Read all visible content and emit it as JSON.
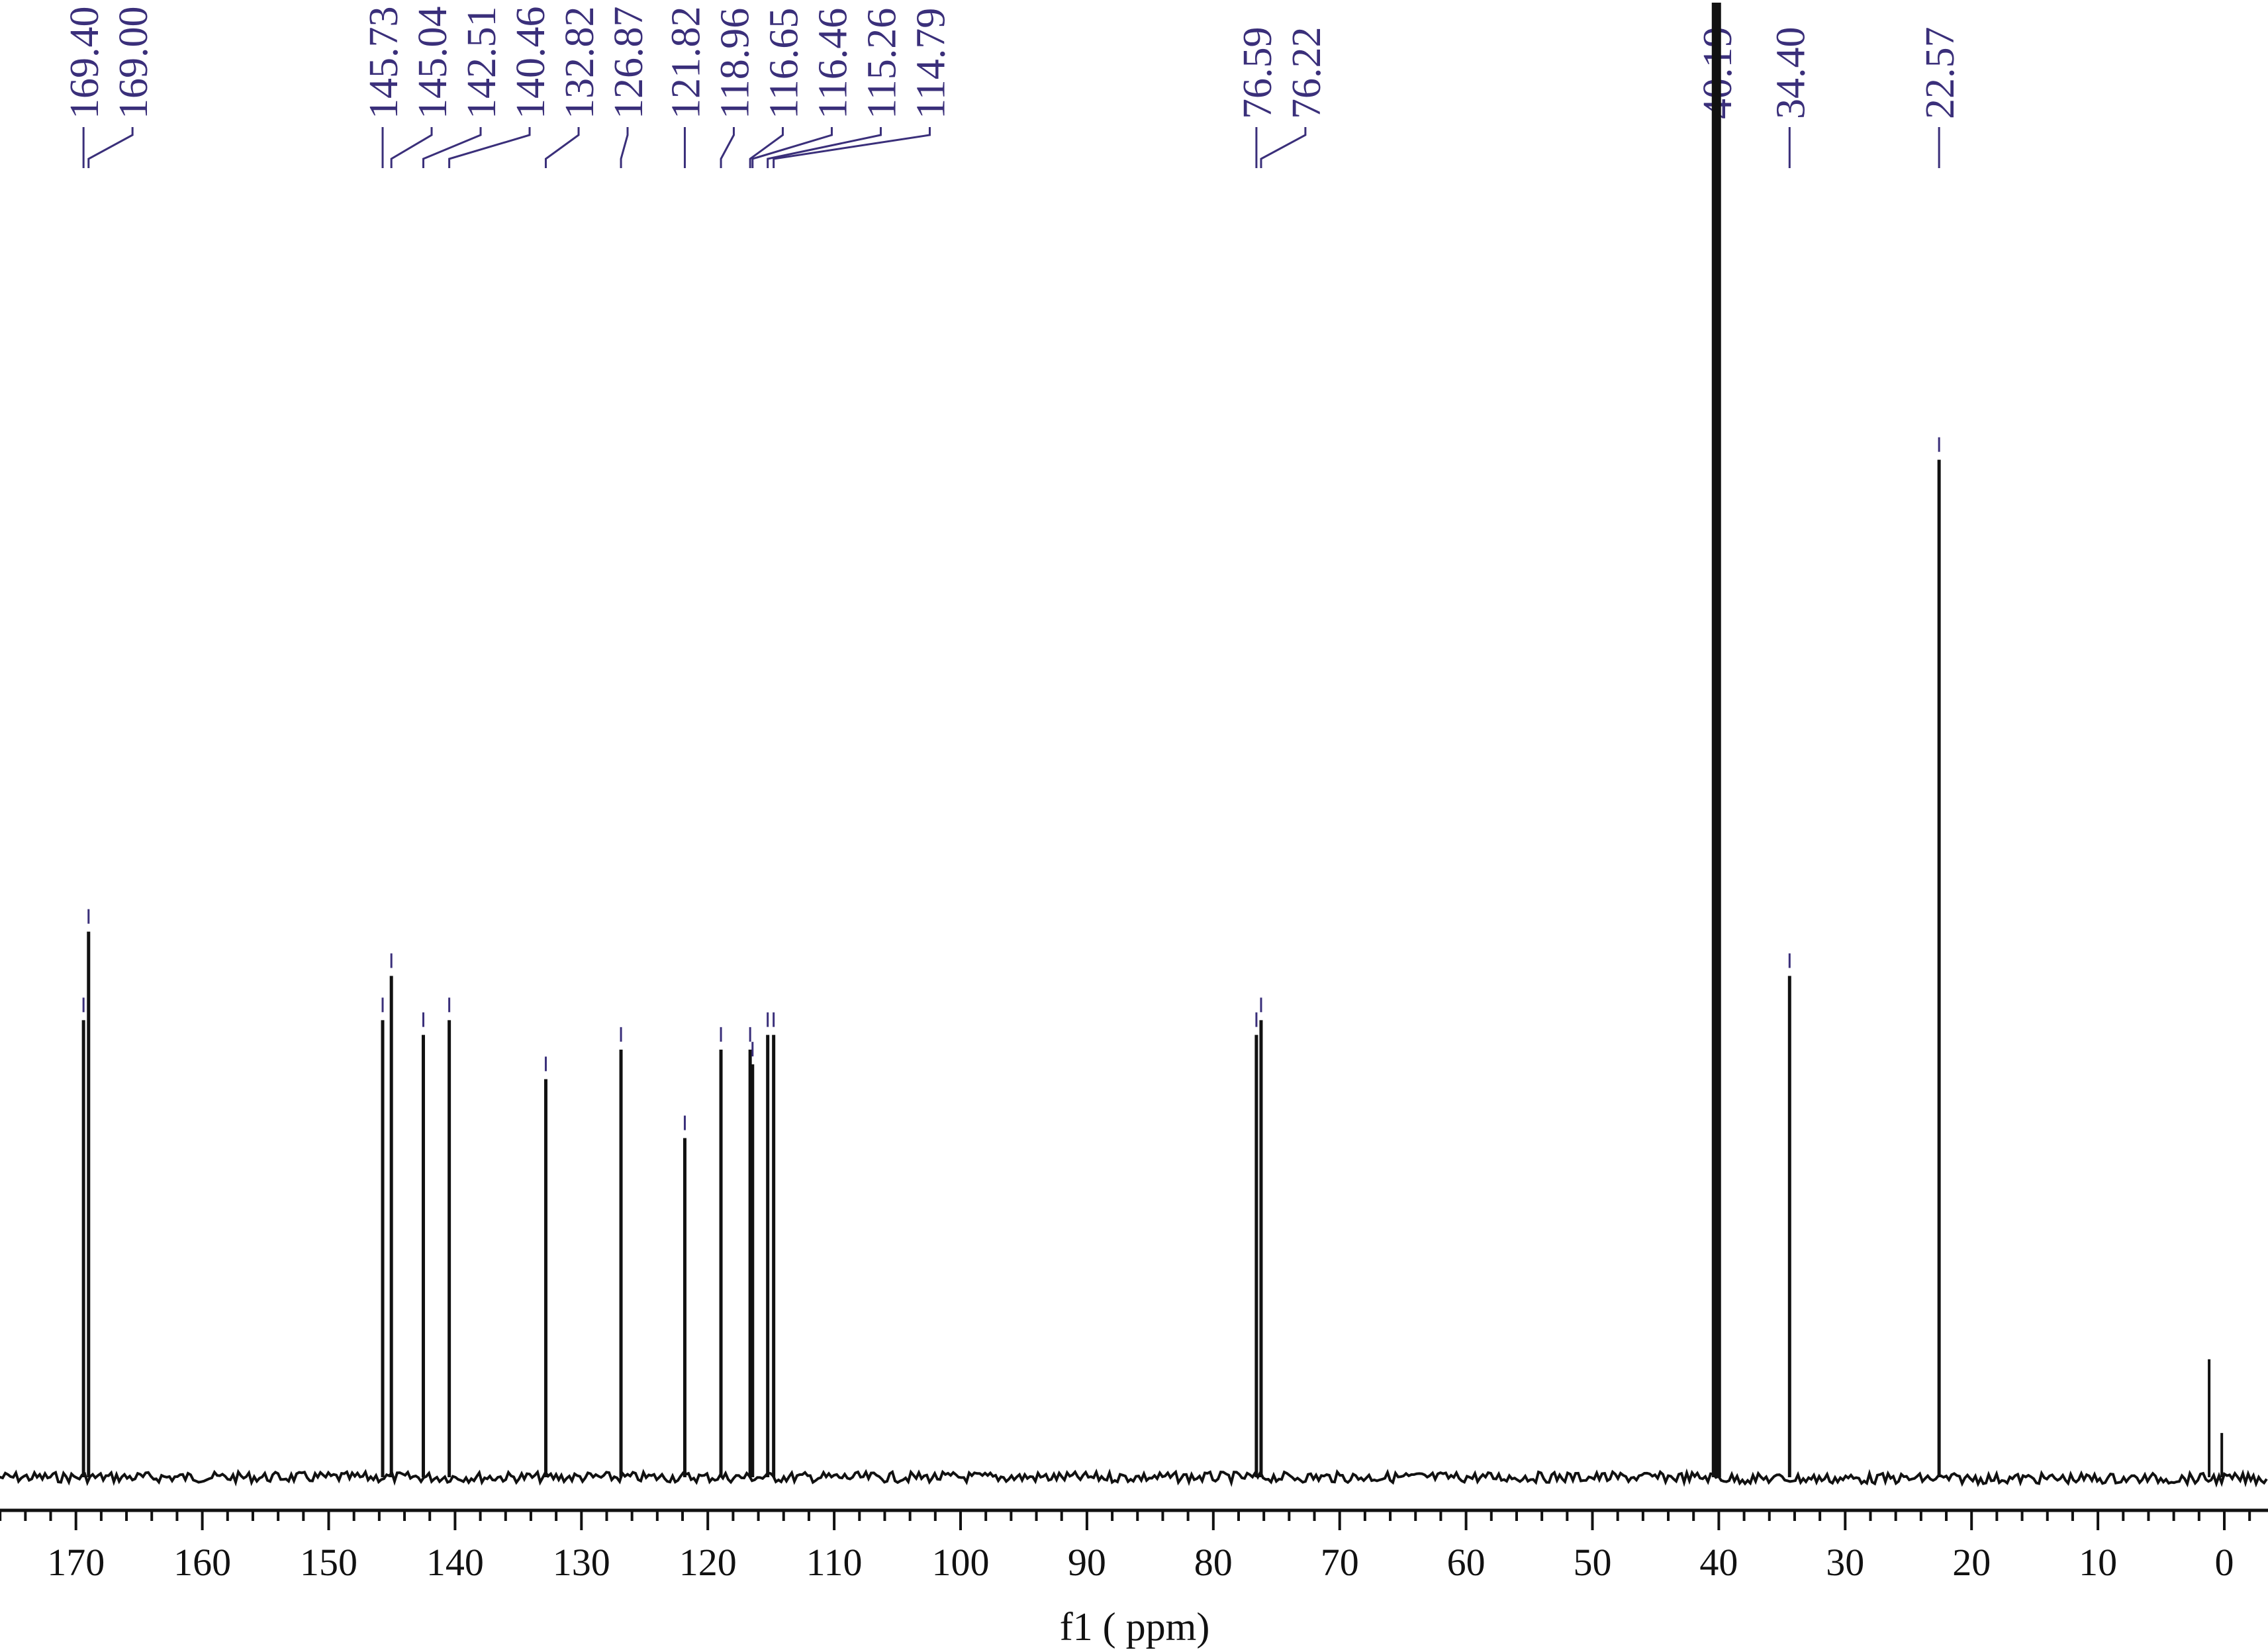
{
  "chart_data": {
    "type": "line",
    "xlabel": "f1 ( ppm)",
    "xlim": [
      178,
      -2
    ],
    "x_reversed": true,
    "major_ticks": [
      170,
      160,
      150,
      140,
      130,
      120,
      110,
      100,
      90,
      80,
      70,
      60,
      50,
      40,
      30,
      20,
      10,
      0
    ],
    "peak_labels": [
      "169.40",
      "169.00",
      "145.73",
      "145.04",
      "142.51",
      "140.46",
      "132.82",
      "126.87",
      "121.82",
      "118.96",
      "116.65",
      "116.46",
      "115.26",
      "114.79",
      "76.59",
      "76.22",
      "40.19",
      "34.40",
      "22.57"
    ],
    "peaks": [
      {
        "ppm": 169.4,
        "intensity": 0.31
      },
      {
        "ppm": 169.0,
        "intensity": 0.37
      },
      {
        "ppm": 145.73,
        "intensity": 0.31
      },
      {
        "ppm": 145.04,
        "intensity": 0.34
      },
      {
        "ppm": 142.51,
        "intensity": 0.3
      },
      {
        "ppm": 140.46,
        "intensity": 0.31
      },
      {
        "ppm": 132.82,
        "intensity": 0.27
      },
      {
        "ppm": 126.87,
        "intensity": 0.29
      },
      {
        "ppm": 121.82,
        "intensity": 0.23
      },
      {
        "ppm": 118.96,
        "intensity": 0.29
      },
      {
        "ppm": 116.65,
        "intensity": 0.29
      },
      {
        "ppm": 116.46,
        "intensity": 0.28
      },
      {
        "ppm": 115.26,
        "intensity": 0.3
      },
      {
        "ppm": 114.79,
        "intensity": 0.3
      },
      {
        "ppm": 76.59,
        "intensity": 0.3
      },
      {
        "ppm": 76.22,
        "intensity": 0.31
      },
      {
        "ppm": 40.19,
        "intensity": 1.0
      },
      {
        "ppm": 34.4,
        "intensity": 0.34
      },
      {
        "ppm": 22.57,
        "intensity": 0.69
      }
    ],
    "minor_peaks": [
      {
        "ppm": 1.2,
        "intensity": 0.08
      },
      {
        "ppm": 0.2,
        "intensity": 0.03
      }
    ],
    "colors": {
      "spectrum": "#111111",
      "labels": "#3a2f7a"
    }
  }
}
